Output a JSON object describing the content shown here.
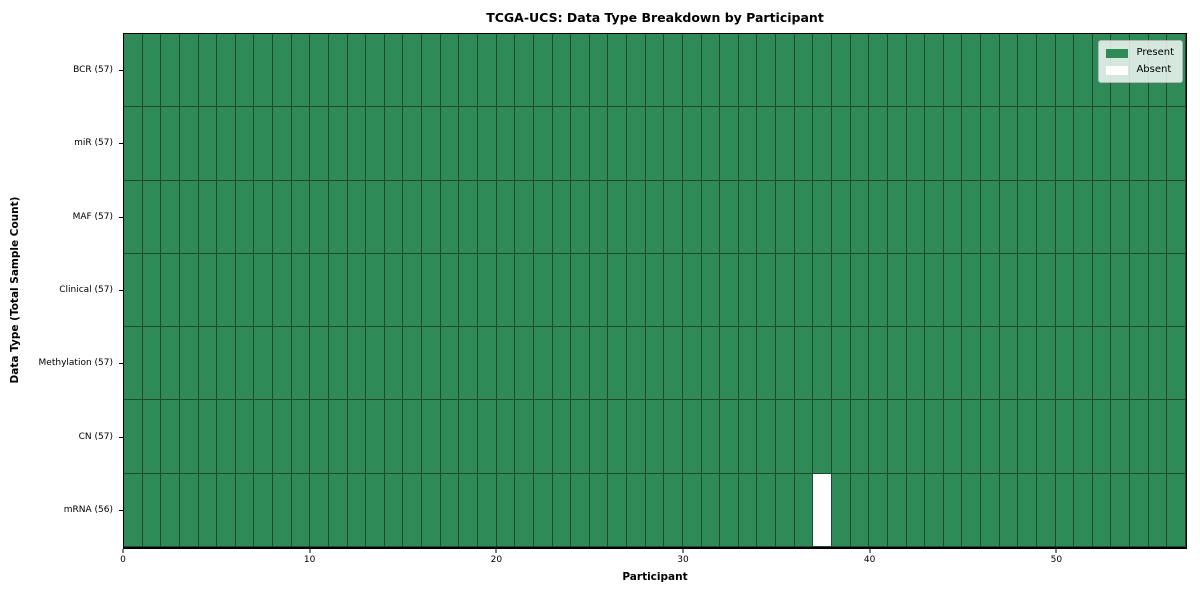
{
  "chart_data": {
    "type": "heatmap",
    "title": "TCGA-UCS: Data Type Breakdown by Participant",
    "xlabel": "Participant",
    "ylabel": "Data Type (Total Sample Count)",
    "n_participants": 57,
    "x_ticks": [
      0,
      10,
      20,
      30,
      40,
      50
    ],
    "rows": [
      {
        "label": "BCR",
        "count": 57,
        "tick_label": "BCR (57)",
        "absent_participants": []
      },
      {
        "label": "miR",
        "count": 57,
        "tick_label": "miR (57)",
        "absent_participants": []
      },
      {
        "label": "MAF",
        "count": 57,
        "tick_label": "MAF (57)",
        "absent_participants": []
      },
      {
        "label": "Clinical",
        "count": 57,
        "tick_label": "Clinical (57)",
        "absent_participants": []
      },
      {
        "label": "Methylation",
        "count": 57,
        "tick_label": "Methylation (57)",
        "absent_participants": []
      },
      {
        "label": "CN",
        "count": 57,
        "tick_label": "CN (57)",
        "absent_participants": []
      },
      {
        "label": "mRNA",
        "count": 56,
        "tick_label": "mRNA (56)",
        "absent_participants": [
          37
        ]
      }
    ],
    "legend": {
      "position": "upper right",
      "items": [
        {
          "label": "Present",
          "color": "#2E8B57"
        },
        {
          "label": "Absent",
          "color": "#FFFFFF"
        }
      ]
    },
    "colors": {
      "present": "#2E8B57",
      "absent": "#FFFFFF",
      "edge": "#1F4A30",
      "spine": "#000000",
      "background": "#FFFFFF"
    }
  }
}
